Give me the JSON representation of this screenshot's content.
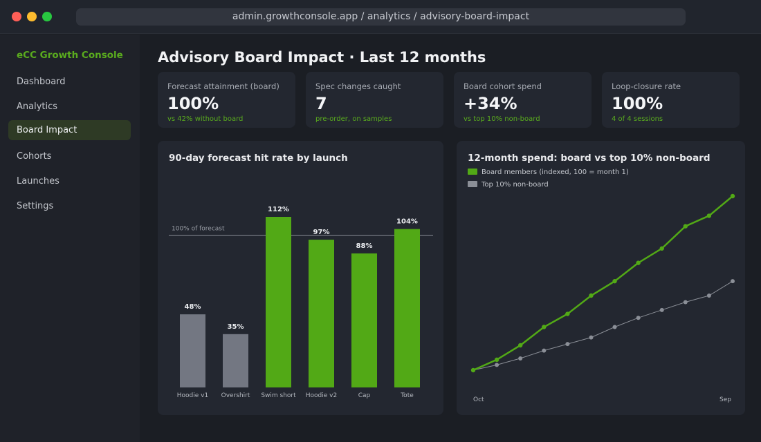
{
  "window": {
    "url": "admin.growthconsole.app / analytics / advisory-board-impact"
  },
  "sidebar": {
    "brand": "eCC Growth Console",
    "items": [
      {
        "label": "Dashboard"
      },
      {
        "label": "Analytics"
      },
      {
        "label": "Board Impact",
        "active": true
      },
      {
        "label": "Cohorts"
      },
      {
        "label": "Launches"
      },
      {
        "label": "Settings"
      }
    ]
  },
  "header": {
    "title": "Advisory Board Impact  ·  Last 12 months"
  },
  "kpis": [
    {
      "label": "Forecast attainment (board)",
      "value": "100%",
      "sub": "vs 42% without board"
    },
    {
      "label": "Spec changes caught",
      "value": "7",
      "sub": "pre-order, on samples"
    },
    {
      "label": "Board cohort spend",
      "value": "+34%",
      "sub": "vs top 10% non-board"
    },
    {
      "label": "Loop-closure rate",
      "value": "100%",
      "sub": "4 of 4 sessions"
    }
  ],
  "colors": {
    "accent": "#52a916",
    "neutral": "#737782",
    "reference": "#8b8f97"
  },
  "chart_data": [
    {
      "type": "bar",
      "title": "90-day forecast hit rate by launch",
      "categories": [
        "Hoodie v1",
        "Overshirt",
        "Swim short",
        "Hoodie v2",
        "Cap",
        "Tote"
      ],
      "values": [
        48,
        35,
        112,
        97,
        88,
        104
      ],
      "value_labels": [
        "48%",
        "35%",
        "112%",
        "97%",
        "88%",
        "104%"
      ],
      "with_board": [
        false,
        false,
        true,
        true,
        true,
        true
      ],
      "reference_line": {
        "value": 100,
        "label": "100% of forecast"
      },
      "ylim": [
        0,
        112
      ]
    },
    {
      "type": "line",
      "title": "12-month spend: board vs top 10% non-board",
      "x_labels": [
        "Oct",
        "Sep"
      ],
      "series": [
        {
          "name": "Board members (indexed, 100 = month 1)",
          "color": "#52a916",
          "values": [
            100,
            108,
            119,
            133,
            143,
            157,
            168,
            182,
            193,
            210,
            218,
            233
          ]
        },
        {
          "name": "Top 10% non-board",
          "color": "#8b8f97",
          "values": [
            100,
            104,
            109,
            115,
            120,
            125,
            133,
            140,
            146,
            152,
            157,
            168
          ]
        }
      ],
      "ylim": [
        100,
        233
      ],
      "legend_position": "top-left"
    }
  ]
}
